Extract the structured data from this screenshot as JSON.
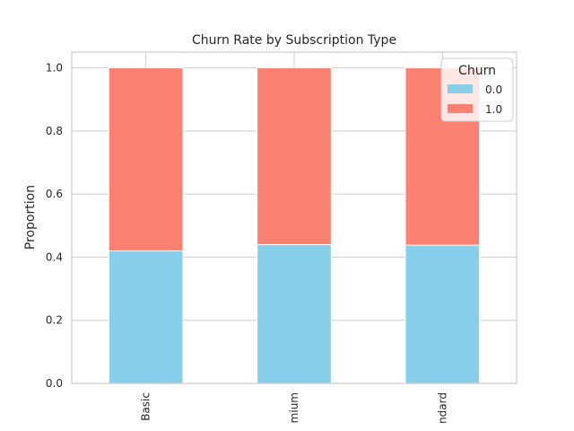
{
  "chart_data": {
    "type": "bar",
    "stacked": true,
    "title": "Churn Rate by Subscription Type",
    "xlabel": "",
    "ylabel": "Proportion",
    "categories": [
      "Basic",
      "Premium",
      "Standard"
    ],
    "visible_category_labels": [
      "Basic",
      "mium",
      "ndard"
    ],
    "series": [
      {
        "name": "0.0",
        "color": "#87CEEB",
        "values": [
          0.42,
          0.44,
          0.438
        ]
      },
      {
        "name": "1.0",
        "color": "#FA8072",
        "values": [
          0.58,
          0.56,
          0.562
        ]
      }
    ],
    "ylim": [
      0,
      1.05
    ],
    "yticks": [
      "0.0",
      "0.2",
      "0.4",
      "0.6",
      "0.8",
      "1.0"
    ],
    "ytick_values": [
      0,
      0.2,
      0.4,
      0.6,
      0.8,
      1.0
    ],
    "grid": true,
    "legend": {
      "title": "Churn",
      "placement": "top-right"
    }
  }
}
